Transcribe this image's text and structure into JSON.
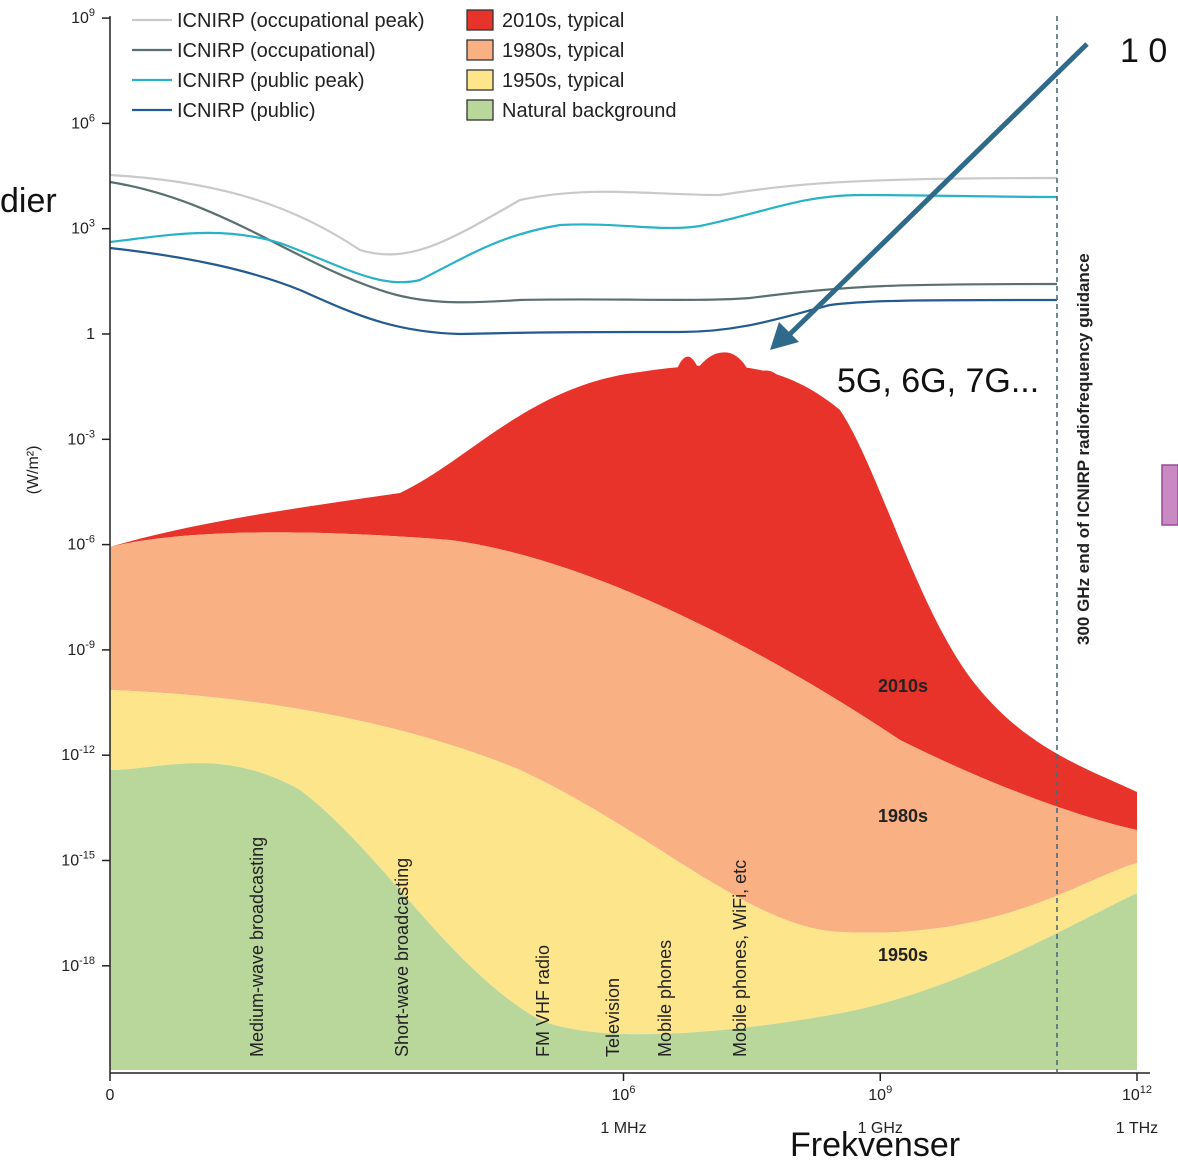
{
  "chart_data": {
    "type": "area",
    "xscale": "log",
    "yscale": "log",
    "ylabel": "(W/m²)",
    "xlabel": "Frekvenser",
    "x_ticks": [
      {
        "value": "0",
        "sub": ""
      },
      {
        "value": "10^6",
        "sub": "1 MHz"
      },
      {
        "value": "10^9",
        "sub": "1 GHz"
      },
      {
        "value": "10^12",
        "sub": "1 THz"
      }
    ],
    "y_ticks": [
      "10^9",
      "10^6",
      "10^3",
      "1",
      "10^-3",
      "10^-6",
      "10^-9",
      "10^-12",
      "10^-15",
      "10^-18"
    ],
    "series": [
      {
        "name": "ICNIRP (occupational peak)",
        "kind": "line",
        "color": "#c9c9c9",
        "x": [
          0,
          6.5,
          7.4,
          8.7,
          10.3,
          12
        ],
        "y": [
          4.0,
          3.3,
          2.4,
          3.6,
          4.0,
          4.0
        ]
      },
      {
        "name": "ICNIRP (occupational)",
        "kind": "line",
        "color": "#5a7070",
        "x": [
          0,
          6.5,
          8.0,
          9.0,
          10.5,
          12
        ],
        "y": [
          4.4,
          2.5,
          1.0,
          0.9,
          1.5,
          1.5
        ]
      },
      {
        "name": "ICNIRP (public peak)",
        "kind": "line",
        "color": "#27b2c7",
        "x": [
          0,
          6.0,
          7.4,
          8.7,
          9.4,
          12
        ],
        "y": [
          2.8,
          2.9,
          1.5,
          3.1,
          3.1,
          3.4
        ]
      },
      {
        "name": "ICNIRP (public)",
        "kind": "line",
        "color": "#235a8f",
        "x": [
          0,
          6.0,
          7.4,
          8.7,
          9.4,
          12
        ],
        "y": [
          2.5,
          1.8,
          0.1,
          0.1,
          0.1,
          1.0
        ]
      },
      {
        "name": "2010s, typical",
        "kind": "area",
        "color": "#e8332a",
        "x": [
          0,
          6.5,
          7.8,
          9.0,
          9.5,
          10.0,
          11.5,
          12
        ],
        "y": [
          -6.0,
          -4.5,
          -1.5,
          -0.8,
          -0.7,
          -2.0,
          -11.0,
          -13.5
        ]
      },
      {
        "name": "1980s, typical",
        "kind": "area",
        "color": "#f9b183",
        "x": [
          0,
          4.5,
          7.5,
          9.0,
          10.5,
          12
        ],
        "y": [
          -6.0,
          -5.5,
          -7.0,
          -12.0,
          -16.5,
          -14.5
        ]
      },
      {
        "name": "1950s, typical",
        "kind": "area",
        "color": "#fde58c",
        "x": [
          0,
          6.0,
          7.5,
          9.0,
          10.5,
          12
        ],
        "y": [
          -10.0,
          -11.0,
          -16.0,
          -19.0,
          -18.0,
          -15.5
        ]
      },
      {
        "name": "Natural background",
        "kind": "area",
        "color": "#b9d69b",
        "x": [
          0,
          6.0,
          7.5,
          9.0,
          10.5,
          12
        ],
        "y": [
          -12.5,
          -15.5,
          -19.5,
          -20.0,
          -18.8,
          -16.5
        ]
      }
    ],
    "band_labels": [
      "2010s",
      "1980s",
      "1950s"
    ],
    "annotations": [
      "Medium-wave broadcasting",
      "Short-wave broadcasting",
      "FM VHF radio",
      "Television",
      "Mobile phones",
      "Mobile phones, WiFi, etc"
    ],
    "guidance_label": "300 GHz end of ICNIRP radiofrequency guidance",
    "callouts": [
      "5G, 6G, 7G...",
      "1 0",
      "dier"
    ],
    "legend_position": "top-left"
  }
}
